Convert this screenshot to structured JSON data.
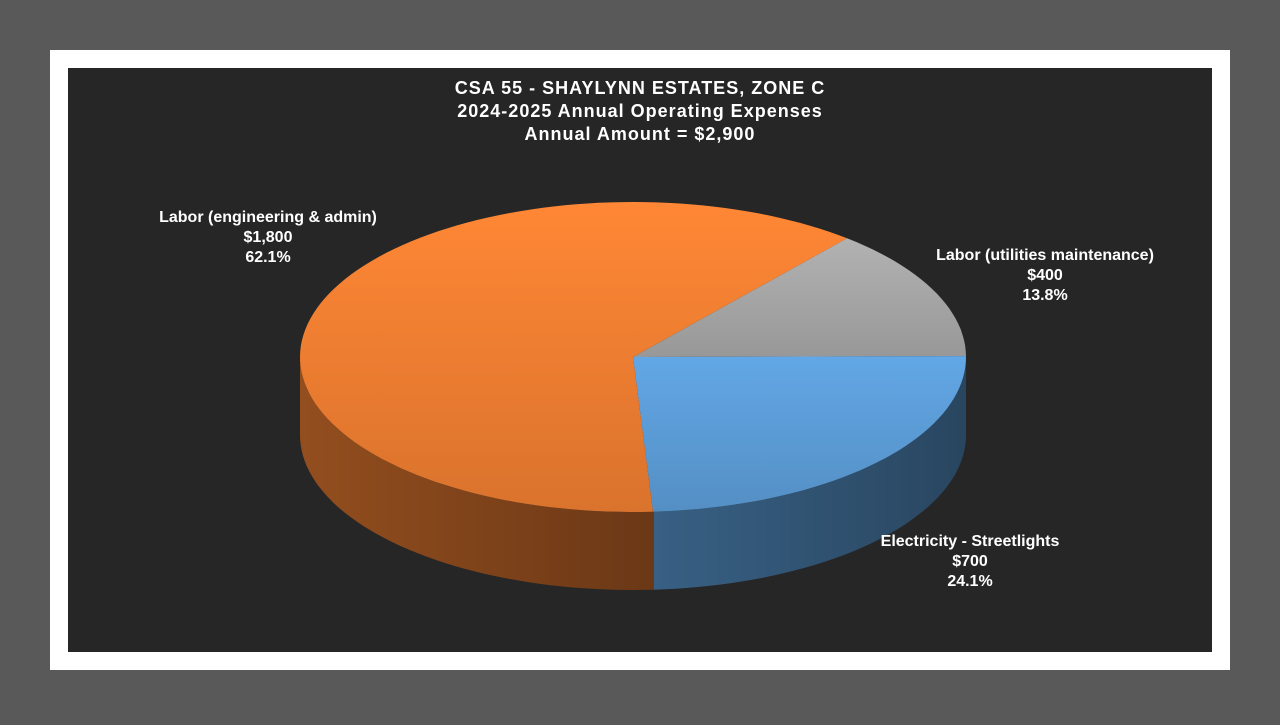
{
  "chart_data": {
    "type": "pie3d",
    "title": [
      "CSA 55 - SHAYLYNN ESTATES, ZONE C",
      "2024-2025 Annual Operating Expenses",
      "Annual Amount = $2,900"
    ],
    "categories": [
      "Labor (utilities maintenance)",
      "Electricity - Streetlights",
      "Labor (engineering & admin)"
    ],
    "values": [
      400,
      700,
      1800
    ],
    "value_labels": [
      "$400",
      "$700",
      "$1,800"
    ],
    "percents": [
      13.8,
      24.1,
      62.1
    ],
    "percent_labels": [
      "13.8%",
      "24.1%",
      "62.1%"
    ],
    "colors": [
      "#a5a5a5",
      "#5b9bd5",
      "#ed7d31"
    ]
  }
}
